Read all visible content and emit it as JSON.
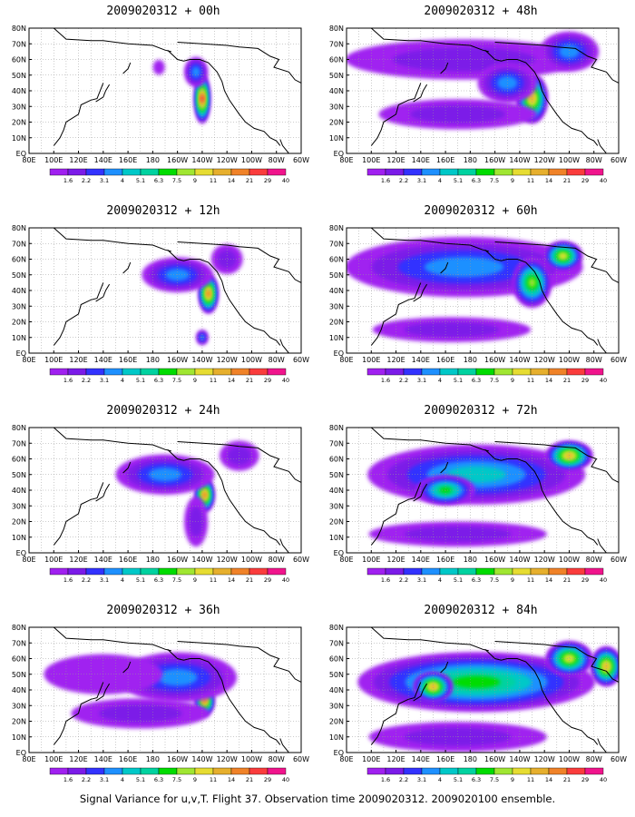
{
  "caption": "Signal Variance for u,v,T. Flight 37. Observation time 2009020312. 2009020100 ensemble.",
  "colors": {
    "levels": [
      "1.6",
      "2.2",
      "3.1",
      "4",
      "5.1",
      "6.3",
      "7.5",
      "9",
      "11",
      "14",
      "21",
      "29",
      "40"
    ],
    "palette": [
      "#a020f0",
      "#7b1be8",
      "#3232ff",
      "#1e90ff",
      "#00c8c8",
      "#00d2a0",
      "#00dc00",
      "#a0e632",
      "#e6dc32",
      "#e6af2d",
      "#f08228",
      "#fa3c3c",
      "#f0148c"
    ]
  },
  "chart_data": [
    {
      "type": "heatmap",
      "title": "2009020312 + 00h",
      "x_ticks": [
        "80E",
        "100E",
        "120E",
        "140E",
        "160E",
        "180",
        "160W",
        "140W",
        "120W",
        "100W",
        "80W",
        "60W"
      ],
      "y_ticks": [
        "EQ",
        "10N",
        "20N",
        "30N",
        "40N",
        "50N",
        "60N",
        "70N",
        "80N"
      ],
      "colorbar_levels": [
        "1.6",
        "2.2",
        "3.1",
        "4",
        "5.1",
        "6.3",
        "7.5",
        "9",
        "11",
        "14",
        "21",
        "29",
        "40"
      ],
      "features": [
        {
          "lon": -140,
          "lat": 35,
          "sx": 4,
          "sy": 10,
          "v": 29
        },
        {
          "lon": -145,
          "lat": 52,
          "sx": 6,
          "sy": 6,
          "v": 5
        },
        {
          "lon": -175,
          "lat": 55,
          "sx": 3,
          "sy": 3,
          "v": 2
        }
      ]
    },
    {
      "type": "heatmap",
      "title": "2009020312 + 48h",
      "x_ticks": [
        "80E",
        "100E",
        "120E",
        "140E",
        "160E",
        "180",
        "160W",
        "140W",
        "120W",
        "100W",
        "80W",
        "60W"
      ],
      "y_ticks": [
        "EQ",
        "10N",
        "20N",
        "30N",
        "40N",
        "50N",
        "60N",
        "70N",
        "80N"
      ],
      "colorbar_levels": [
        "1.6",
        "2.2",
        "3.1",
        "4",
        "5.1",
        "6.3",
        "7.5",
        "9",
        "11",
        "14",
        "21",
        "29",
        "40"
      ],
      "features": [
        {
          "lon": 175,
          "lat": 60,
          "sx": 60,
          "sy": 8,
          "v": 3
        },
        {
          "lon": -130,
          "lat": 35,
          "sx": 8,
          "sy": 10,
          "v": 14
        },
        {
          "lon": -150,
          "lat": 45,
          "sx": 15,
          "sy": 8,
          "v": 5
        },
        {
          "lon": 170,
          "lat": 25,
          "sx": 40,
          "sy": 6,
          "v": 2.5
        },
        {
          "lon": -100,
          "lat": 65,
          "sx": 15,
          "sy": 8,
          "v": 4
        }
      ]
    },
    {
      "type": "heatmap",
      "title": "2009020312 + 12h",
      "x_ticks": [
        "80E",
        "100E",
        "120E",
        "140E",
        "160E",
        "180",
        "160W",
        "140W",
        "120W",
        "100W",
        "80W",
        "60W"
      ],
      "y_ticks": [
        "EQ",
        "10N",
        "20N",
        "30N",
        "40N",
        "50N",
        "60N",
        "70N",
        "80N"
      ],
      "colorbar_levels": [
        "1.6",
        "2.2",
        "3.1",
        "4",
        "5.1",
        "6.3",
        "7.5",
        "9",
        "11",
        "14",
        "21",
        "29",
        "40"
      ],
      "features": [
        {
          "lon": -135,
          "lat": 38,
          "sx": 5,
          "sy": 8,
          "v": 21
        },
        {
          "lon": -160,
          "lat": 50,
          "sx": 18,
          "sy": 7,
          "v": 4
        },
        {
          "lon": -120,
          "lat": 60,
          "sx": 8,
          "sy": 6,
          "v": 3
        },
        {
          "lon": -140,
          "lat": 10,
          "sx": 3,
          "sy": 3,
          "v": 4
        }
      ]
    },
    {
      "type": "heatmap",
      "title": "2009020312 + 60h",
      "x_ticks": [
        "80E",
        "100E",
        "120E",
        "140E",
        "160E",
        "180",
        "160W",
        "140W",
        "120W",
        "100W",
        "80W",
        "60W"
      ],
      "y_ticks": [
        "EQ",
        "10N",
        "20N",
        "30N",
        "40N",
        "50N",
        "60N",
        "70N",
        "80N"
      ],
      "colorbar_levels": [
        "1.6",
        "2.2",
        "3.1",
        "4",
        "5.1",
        "6.3",
        "7.5",
        "9",
        "11",
        "14",
        "21",
        "29",
        "40"
      ],
      "features": [
        {
          "lon": 175,
          "lat": 55,
          "sx": 60,
          "sy": 12,
          "v": 4
        },
        {
          "lon": -130,
          "lat": 45,
          "sx": 10,
          "sy": 10,
          "v": 9
        },
        {
          "lon": -105,
          "lat": 62,
          "sx": 10,
          "sy": 6,
          "v": 11
        },
        {
          "lon": 165,
          "lat": 15,
          "sx": 40,
          "sy": 5,
          "v": 2.5
        }
      ]
    },
    {
      "type": "heatmap",
      "title": "2009020312 + 24h",
      "x_ticks": [
        "80E",
        "100E",
        "120E",
        "140E",
        "160E",
        "180",
        "160W",
        "140W",
        "120W",
        "100W",
        "80W",
        "60W"
      ],
      "y_ticks": [
        "EQ",
        "10N",
        "20N",
        "30N",
        "40N",
        "50N",
        "60N",
        "70N",
        "80N"
      ],
      "colorbar_levels": [
        "1.6",
        "2.2",
        "3.1",
        "4",
        "5.1",
        "6.3",
        "7.5",
        "9",
        "11",
        "14",
        "21",
        "29",
        "40"
      ],
      "features": [
        {
          "lon": -138,
          "lat": 37,
          "sx": 5,
          "sy": 7,
          "v": 21
        },
        {
          "lon": -170,
          "lat": 50,
          "sx": 25,
          "sy": 8,
          "v": 4
        },
        {
          "lon": -145,
          "lat": 20,
          "sx": 6,
          "sy": 10,
          "v": 3
        },
        {
          "lon": -110,
          "lat": 62,
          "sx": 10,
          "sy": 6,
          "v": 3
        }
      ]
    },
    {
      "type": "heatmap",
      "title": "2009020312 + 72h",
      "x_ticks": [
        "80E",
        "100E",
        "120E",
        "140E",
        "160E",
        "180",
        "160W",
        "140W",
        "120W",
        "100W",
        "80W",
        "60W"
      ],
      "y_ticks": [
        "EQ",
        "10N",
        "20N",
        "30N",
        "40N",
        "50N",
        "60N",
        "70N",
        "80N"
      ],
      "colorbar_levels": [
        "1.6",
        "2.2",
        "3.1",
        "4",
        "5.1",
        "6.3",
        "7.5",
        "9",
        "11",
        "14",
        "21",
        "29",
        "40"
      ],
      "features": [
        {
          "lon": -175,
          "lat": 50,
          "sx": 55,
          "sy": 12,
          "v": 6
        },
        {
          "lon": -100,
          "lat": 62,
          "sx": 12,
          "sy": 6,
          "v": 14
        },
        {
          "lon": 160,
          "lat": 40,
          "sx": 15,
          "sy": 6,
          "v": 7.5
        },
        {
          "lon": 170,
          "lat": 12,
          "sx": 45,
          "sy": 5,
          "v": 2.5
        }
      ]
    },
    {
      "type": "heatmap",
      "title": "2009020312 + 36h",
      "x_ticks": [
        "80E",
        "100E",
        "120E",
        "140E",
        "160E",
        "180",
        "160W",
        "140W",
        "120W",
        "100W",
        "80W",
        "60W"
      ],
      "y_ticks": [
        "EQ",
        "10N",
        "20N",
        "30N",
        "40N",
        "50N",
        "60N",
        "70N",
        "80N"
      ],
      "colorbar_levels": [
        "1.6",
        "2.2",
        "3.1",
        "4",
        "5.1",
        "6.3",
        "7.5",
        "9",
        "11",
        "14",
        "21",
        "29",
        "40"
      ],
      "features": [
        {
          "lon": -138,
          "lat": 33,
          "sx": 5,
          "sy": 6,
          "v": 21
        },
        {
          "lon": -160,
          "lat": 48,
          "sx": 30,
          "sy": 10,
          "v": 4
        },
        {
          "lon": 140,
          "lat": 50,
          "sx": 30,
          "sy": 8,
          "v": 2
        },
        {
          "lon": 170,
          "lat": 25,
          "sx": 35,
          "sy": 6,
          "v": 2.5
        }
      ]
    },
    {
      "type": "heatmap",
      "title": "2009020312 + 84h",
      "x_ticks": [
        "80E",
        "100E",
        "120E",
        "140E",
        "160E",
        "180",
        "160W",
        "140W",
        "120W",
        "100W",
        "80W",
        "60W"
      ],
      "y_ticks": [
        "EQ",
        "10N",
        "20N",
        "30N",
        "40N",
        "50N",
        "60N",
        "70N",
        "80N"
      ],
      "colorbar_levels": [
        "1.6",
        "2.2",
        "3.1",
        "4",
        "5.1",
        "6.3",
        "7.5",
        "9",
        "11",
        "14",
        "21",
        "29",
        "40"
      ],
      "features": [
        {
          "lon": -175,
          "lat": 45,
          "sx": 60,
          "sy": 12,
          "v": 7.5
        },
        {
          "lon": 150,
          "lat": 42,
          "sx": 10,
          "sy": 6,
          "v": 14
        },
        {
          "lon": -100,
          "lat": 60,
          "sx": 12,
          "sy": 7,
          "v": 11
        },
        {
          "lon": -70,
          "lat": 55,
          "sx": 8,
          "sy": 8,
          "v": 14
        },
        {
          "lon": 170,
          "lat": 10,
          "sx": 45,
          "sy": 6,
          "v": 3
        }
      ]
    }
  ]
}
